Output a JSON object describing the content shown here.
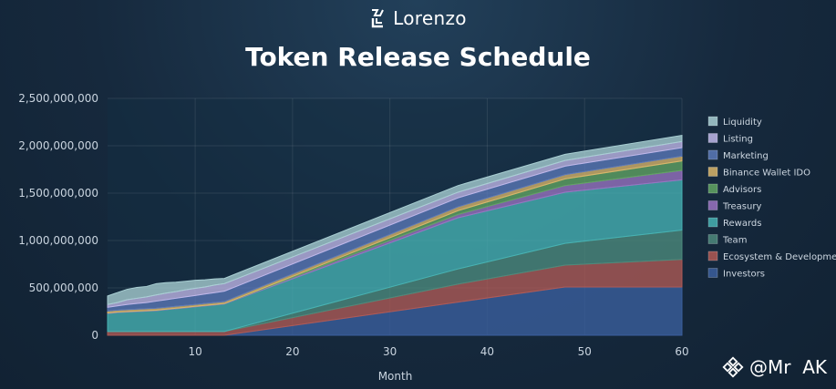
{
  "brand": {
    "name": "Lorenzo",
    "logo_icon": "lorenzo-logo-icon"
  },
  "watermark": {
    "handle": "@Mr  AK",
    "icon": "binance-logo-icon"
  },
  "colors": {
    "background": "#16293d",
    "Investors": "#3b5f9e",
    "Ecosystem & Development": "#b05a55",
    "Team": "#4d8a7c",
    "Rewards": "#47b2b3",
    "Treasury": "#9a73c2",
    "Advisors": "#62a463",
    "Binance Wallet IDO": "#d9b56a",
    "Marketing": "#5b79b8",
    "Listing": "#c0b7e8",
    "Liquidity": "#a9cfd3"
  },
  "chart_data": {
    "type": "area",
    "stacked": true,
    "title": "Token Release Schedule",
    "xlabel": "Month",
    "ylabel": "",
    "xlim": [
      1,
      60
    ],
    "ylim": [
      0,
      2500000000
    ],
    "xticks": [
      10,
      20,
      30,
      40,
      50,
      60
    ],
    "yticks": [
      0,
      500000000,
      1000000000,
      1500000000,
      2000000000,
      2500000000
    ],
    "ytick_labels": [
      "0",
      "500,000,000",
      "1,000,000,000",
      "1,500,000,000",
      "2,000,000,000",
      "2,500,000,000"
    ],
    "grid": true,
    "legend_position": "right",
    "x": [
      1,
      2,
      3,
      4,
      5,
      6,
      7,
      8,
      9,
      10,
      11,
      12,
      13,
      37,
      48,
      60
    ],
    "series": [
      {
        "name": "Investors",
        "values": [
          0,
          0,
          0,
          0,
          0,
          0,
          0,
          0,
          0,
          0,
          0,
          0,
          0,
          350000000,
          510000000,
          510000000
        ]
      },
      {
        "name": "Ecosystem & Development",
        "values": [
          40000000,
          40000000,
          40000000,
          40000000,
          40000000,
          40000000,
          40000000,
          40000000,
          40000000,
          40000000,
          40000000,
          40000000,
          40000000,
          190000000,
          230000000,
          290000000
        ]
      },
      {
        "name": "Team",
        "values": [
          0,
          0,
          0,
          0,
          0,
          0,
          0,
          0,
          0,
          0,
          0,
          0,
          0,
          160000000,
          230000000,
          310000000
        ]
      },
      {
        "name": "Rewards",
        "values": [
          190000000,
          200000000,
          205000000,
          210000000,
          215000000,
          220000000,
          230000000,
          240000000,
          250000000,
          260000000,
          270000000,
          280000000,
          290000000,
          540000000,
          540000000,
          530000000
        ]
      },
      {
        "name": "Treasury",
        "values": [
          5000000,
          5000000,
          5000000,
          5000000,
          5000000,
          5000000,
          5000000,
          5000000,
          5000000,
          5000000,
          5000000,
          5000000,
          5000000,
          35000000,
          70000000,
          100000000
        ]
      },
      {
        "name": "Advisors",
        "values": [
          0,
          0,
          0,
          0,
          0,
          0,
          0,
          0,
          0,
          0,
          0,
          0,
          0,
          40000000,
          70000000,
          100000000
        ]
      },
      {
        "name": "Binance Wallet IDO",
        "values": [
          20000000,
          20000000,
          20000000,
          20000000,
          20000000,
          20000000,
          20000000,
          20000000,
          20000000,
          20000000,
          20000000,
          20000000,
          20000000,
          40000000,
          45000000,
          50000000
        ]
      },
      {
        "name": "Marketing",
        "values": [
          40000000,
          45000000,
          55000000,
          60000000,
          65000000,
          75000000,
          80000000,
          85000000,
          90000000,
          95000000,
          100000000,
          105000000,
          110000000,
          95000000,
          90000000,
          90000000
        ]
      },
      {
        "name": "Listing",
        "values": [
          30000000,
          35000000,
          50000000,
          55000000,
          60000000,
          65000000,
          70000000,
          70000000,
          75000000,
          75000000,
          75000000,
          80000000,
          80000000,
          60000000,
          60000000,
          65000000
        ]
      },
      {
        "name": "Liquidity",
        "values": [
          90000000,
          105000000,
          110000000,
          115000000,
          110000000,
          120000000,
          110000000,
          100000000,
          90000000,
          85000000,
          75000000,
          65000000,
          55000000,
          70000000,
          65000000,
          65000000
        ]
      }
    ],
    "legend_order": [
      "Liquidity",
      "Listing",
      "Marketing",
      "Binance Wallet IDO",
      "Advisors",
      "Treasury",
      "Rewards",
      "Team",
      "Ecosystem & Development",
      "Investors"
    ]
  }
}
